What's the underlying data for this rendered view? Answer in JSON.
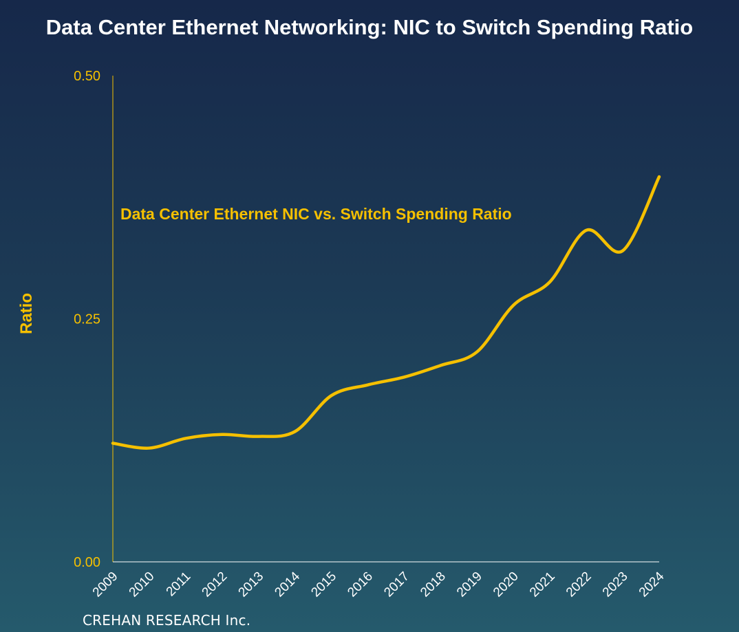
{
  "chart_data": {
    "type": "line",
    "title": "Data Center Ethernet Networking: NIC to Switch Spending Ratio",
    "xlabel": "",
    "ylabel": "Ratio",
    "ylim": [
      0,
      0.5
    ],
    "yticks": [
      "0.00",
      "0.25",
      "0.50"
    ],
    "ytick_values": [
      0,
      0.25,
      0.5
    ],
    "grid": false,
    "categories": [
      "2009",
      "2010",
      "2011",
      "2012",
      "2013",
      "2014",
      "2015",
      "2016",
      "2017",
      "2018",
      "2019",
      "2020",
      "2021",
      "2022",
      "2023",
      "2024"
    ],
    "series": [
      {
        "name": "Data Center Ethernet NIC vs. Switch Spending Ratio",
        "color": "#f5c000",
        "values": [
          0.122,
          0.117,
          0.127,
          0.131,
          0.129,
          0.134,
          0.171,
          0.182,
          0.19,
          0.202,
          0.216,
          0.264,
          0.288,
          0.341,
          0.32,
          0.396
        ]
      }
    ],
    "annotation": "Data Center Ethernet NIC vs. Switch Spending Ratio"
  },
  "footer": "CREHAN RESEARCH Inc."
}
